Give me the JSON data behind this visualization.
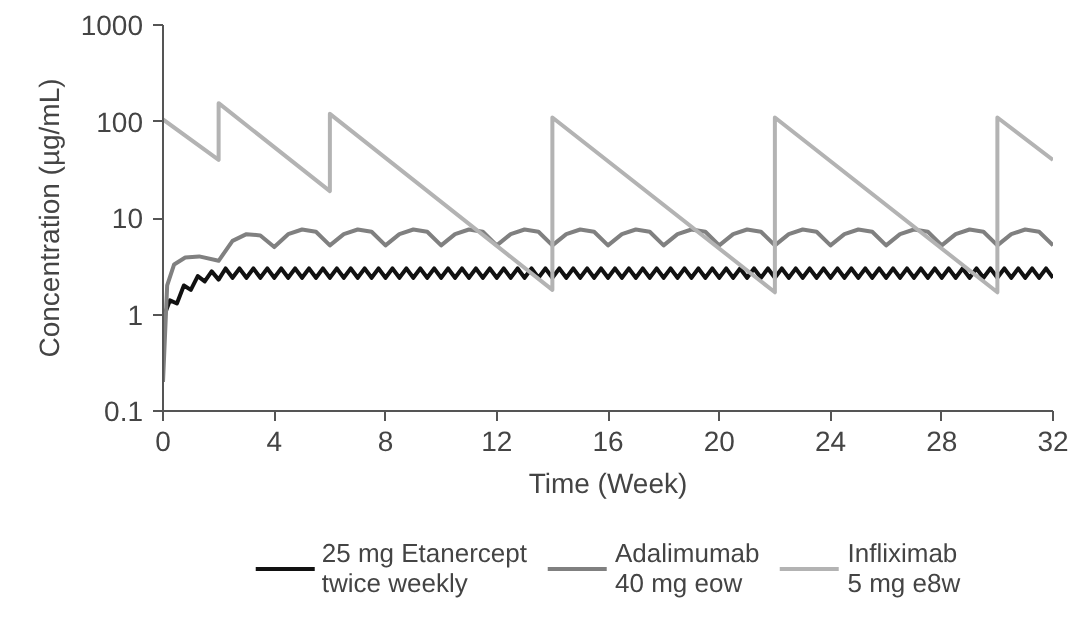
{
  "chart_data": {
    "type": "line",
    "xlabel": "Time (Week)",
    "ylabel": "Concentration (µg/mL)",
    "log": "y",
    "xlim": [
      0,
      32
    ],
    "xticks": [
      0,
      4,
      8,
      12,
      16,
      20,
      24,
      28,
      32
    ],
    "ylim": [
      0.1,
      1000
    ],
    "yticks": [
      0.1,
      1,
      10,
      100,
      1000
    ],
    "grid": false,
    "legend": "bottom",
    "line_style": "solid",
    "marker": "none",
    "series": [
      {
        "name": "25 mg Etanercept twice weekly",
        "color": "#111111",
        "x": [
          0,
          0.25,
          0.5,
          0.75,
          1,
          1.25,
          1.5,
          1.75,
          2,
          2.25,
          2.5,
          2.75,
          3,
          3.25,
          3.5,
          3.75,
          4,
          4.25,
          4.5,
          4.75,
          5,
          5.25,
          5.5,
          5.75,
          6,
          6.25,
          6.5,
          6.75,
          7,
          7.25,
          7.5,
          7.75,
          8,
          8.25,
          8.5,
          8.75,
          9,
          9.25,
          9.5,
          9.75,
          10,
          10.25,
          10.5,
          10.75,
          11,
          11.25,
          11.5,
          11.75,
          12,
          12.25,
          12.5,
          12.75,
          13,
          13.25,
          13.5,
          13.75,
          14,
          14.25,
          14.5,
          14.75,
          15,
          15.25,
          15.5,
          15.75,
          16,
          16.25,
          16.5,
          16.75,
          17,
          17.25,
          17.5,
          17.75,
          18,
          18.25,
          18.5,
          18.75,
          19,
          19.25,
          19.5,
          19.75,
          20,
          20.25,
          20.5,
          20.75,
          21,
          21.25,
          21.5,
          21.75,
          22,
          22.25,
          22.5,
          22.75,
          23,
          23.25,
          23.5,
          23.75,
          24,
          24.25,
          24.5,
          24.75,
          25,
          25.25,
          25.5,
          25.75,
          26,
          26.25,
          26.5,
          26.75,
          27,
          27.25,
          27.5,
          27.75,
          28,
          28.25,
          28.5,
          28.75,
          29,
          29.25,
          29.5,
          29.75,
          30,
          30.25,
          30.5,
          30.75,
          31,
          31.25,
          31.5,
          31.75,
          32
        ],
        "values": [
          0.9,
          1.4,
          1.3,
          2.0,
          1.8,
          2.5,
          2.2,
          2.8,
          2.3,
          3.0,
          2.4,
          3.0,
          2.4,
          3.0,
          2.4,
          3.0,
          2.4,
          3.0,
          2.4,
          3.0,
          2.4,
          3.0,
          2.4,
          3.0,
          2.4,
          3.0,
          2.4,
          3.0,
          2.4,
          3.0,
          2.4,
          3.0,
          2.4,
          3.0,
          2.4,
          3.0,
          2.4,
          3.0,
          2.4,
          3.0,
          2.4,
          3.0,
          2.4,
          3.0,
          2.4,
          3.0,
          2.4,
          3.0,
          2.4,
          3.0,
          2.4,
          3.0,
          2.4,
          3.0,
          2.4,
          3.0,
          2.4,
          3.0,
          2.4,
          3.0,
          2.4,
          3.0,
          2.4,
          3.0,
          2.4,
          3.0,
          2.4,
          3.0,
          2.4,
          3.0,
          2.4,
          3.0,
          2.4,
          3.0,
          2.4,
          3.0,
          2.4,
          3.0,
          2.4,
          3.0,
          2.4,
          3.0,
          2.4,
          3.0,
          2.4,
          3.0,
          2.4,
          3.0,
          2.4,
          3.0,
          2.4,
          3.0,
          2.4,
          3.0,
          2.4,
          3.0,
          2.4,
          3.0,
          2.4,
          3.0,
          2.4,
          3.0,
          2.4,
          3.0,
          2.4,
          3.0,
          2.4,
          3.0,
          2.4,
          3.0,
          2.4,
          3.0,
          2.4,
          3.0,
          2.4,
          3.0,
          2.4,
          3.0,
          2.4,
          3.0,
          2.4,
          3.0,
          2.4,
          3.0,
          2.4,
          3.0,
          2.4,
          3.0,
          2.4
        ]
      },
      {
        "name": "Adalimumab 40 mg eow",
        "color": "#808080",
        "x": [
          0,
          0.15,
          0.4,
          0.8,
          1.3,
          2,
          2.5,
          3,
          3.5,
          4,
          4.5,
          5,
          5.5,
          6,
          6.5,
          7,
          7.5,
          8,
          8.5,
          9,
          9.5,
          10,
          10.5,
          11,
          11.5,
          12,
          12.5,
          13,
          13.5,
          14,
          14.5,
          15,
          15.5,
          16,
          16.5,
          17,
          17.5,
          18,
          18.5,
          19,
          19.5,
          20,
          20.5,
          21,
          21.5,
          22,
          22.5,
          23,
          23.5,
          24,
          24.5,
          25,
          25.5,
          26,
          26.5,
          27,
          27.5,
          28,
          28.5,
          29,
          29.5,
          30,
          30.5,
          31,
          31.5,
          32
        ],
        "values": [
          0.2,
          2.0,
          3.3,
          3.9,
          4.0,
          3.6,
          5.8,
          6.8,
          6.6,
          5.0,
          6.8,
          7.6,
          7.2,
          5.2,
          6.8,
          7.6,
          7.2,
          5.2,
          6.8,
          7.6,
          7.2,
          5.2,
          6.8,
          7.6,
          7.2,
          5.2,
          6.8,
          7.6,
          7.2,
          5.2,
          6.8,
          7.6,
          7.2,
          5.2,
          6.8,
          7.6,
          7.2,
          5.2,
          6.8,
          7.6,
          7.2,
          5.2,
          6.8,
          7.6,
          7.2,
          5.2,
          6.8,
          7.6,
          7.2,
          5.2,
          6.8,
          7.6,
          7.2,
          5.2,
          6.8,
          7.6,
          7.2,
          5.2,
          6.8,
          7.6,
          7.2,
          5.2,
          6.8,
          7.6,
          7.2,
          5.2
        ]
      },
      {
        "name": "Infliximab 5 mg e8w",
        "color": "#b3b3b3",
        "x": [
          0,
          2,
          2,
          6,
          6,
          14,
          14,
          22,
          22,
          30,
          30,
          32
        ],
        "values": [
          105,
          40,
          155,
          19,
          120,
          1.8,
          110,
          1.7,
          110,
          1.7,
          110,
          40
        ]
      }
    ]
  }
}
